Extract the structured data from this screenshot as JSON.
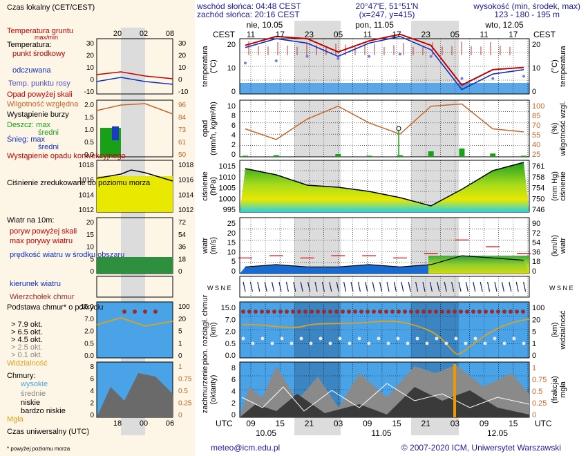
{
  "header": {
    "sunrise": "wschód słońca: 04:48 CEST",
    "sunset": "zachód słońca: 20:16 CEST",
    "coords": "20°47'E, 51°51'N",
    "grid": "(x=247, y=415)",
    "elevation_label": "wysokość (min, środek, max)",
    "elevation": "123 - 180 - 195 m"
  },
  "days": {
    "d1": "nie, 10.05",
    "d2": "pon, 11.05",
    "d3": "wto, 12.05"
  },
  "cest_label": "CEST",
  "utc_label": "UTC",
  "cest_hours": [
    "11",
    "17",
    "23",
    "05",
    "11",
    "17",
    "23",
    "05",
    "11",
    "17"
  ],
  "utc_hours": [
    "09",
    "15",
    "21",
    "03",
    "09",
    "15",
    "21",
    "03",
    "09",
    "15"
  ],
  "utc_dates": [
    "10.05",
    "11.05",
    "12.05"
  ],
  "legend": {
    "tz_title": "Czas lokalny\n(CET/CEST)",
    "tz_hours": [
      "20",
      "02",
      "08"
    ],
    "utc_title": "Czas uniwersalny (UTC)",
    "utc_hours": [
      "18",
      "00",
      "06"
    ],
    "footnote": "* powyżej poziomu morza",
    "soil_temp": "Temperatura gruntu",
    "maxmin": "max/min",
    "temperature": "Temperatura:",
    "dew_mid": "punkt środkowy",
    "apparent": "odczuwana",
    "dew_point": "Temp. punktu rosy",
    "precip_above": "Opad powyżej skali",
    "humidity": "Wilgotność względna",
    "storm": "Wystąpienie burzy",
    "rain_max": "Deszcz: max",
    "rain_mid": "średni",
    "snow_max": "Śnieg:  max",
    "snow_mid": "średni",
    "convective": "Wystąpienie opadu konwekcyjnego",
    "pressure": "Ciśnienie zredukowane do poziomu morza",
    "wind10": "Wiatr na 10m:",
    "gust_above": "poryw powyżej skali",
    "gust_max": "max porywy wiatru",
    "wind_mean": "prędkość wiatru w środku obszaru",
    "wind_dir": "kierunek wiatru",
    "cloud_top": "Wierzchołek chmur",
    "cloud_base": "Podstawa chmur* o pokryciu",
    "okt": [
      "> 7.9 okt.",
      "> 6.5 okt.",
      "> 4.5 okt.",
      "> 2.5 okt.",
      "> 0.1 okt."
    ],
    "visibility": "Widzialność",
    "clouds": "Chmury:",
    "high": "wysokie",
    "mid": "średnie",
    "low": "niskie",
    "very_low": "bardzo niskie",
    "fog": "Mgła"
  },
  "legend_ticks": {
    "temp_left": [
      "30",
      "20",
      "10",
      "0",
      "-10"
    ],
    "temp_right": [
      "30",
      "20",
      "10",
      "0",
      "-10"
    ],
    "precip_left": [
      "2.0",
      "1.5",
      "1.0",
      "0.5",
      "0.0"
    ],
    "precip_right": [
      "96",
      "84",
      "73",
      "61",
      "50"
    ],
    "press_left": [
      "1018",
      "1016",
      "1014",
      "1012"
    ],
    "press_right": [
      "1018",
      "1016",
      "1014",
      "1012"
    ],
    "wind_left": [
      "20",
      "15",
      "10",
      "5",
      "0"
    ],
    "wind_right": [
      "72",
      "54",
      "36",
      "18",
      "0"
    ],
    "cloud_left": [
      "15.0",
      "7.0",
      "2.0",
      "0.5",
      "0.0"
    ],
    "cloud_right": [
      "100",
      "20",
      "5",
      "1",
      "0"
    ],
    "fog_left": [
      "8",
      "6",
      "4",
      "2",
      "0"
    ],
    "fog_right": [
      "1",
      "0.75",
      "0.5",
      "0.25",
      "0"
    ]
  },
  "panels": {
    "temp": {
      "label_l": "temperatura\n(°C)",
      "label_r": "(°C)\ntemperatura",
      "ticks_l": [
        "20",
        "10",
        "0"
      ],
      "ticks_r": [
        "20",
        "10",
        "0"
      ]
    },
    "precip": {
      "label_l": "opad\n(mm/h, kg/m²/h)",
      "label_r": "(%)\nwilgotność wzgl.",
      "ticks_l": [
        "10",
        "8",
        "6",
        "4",
        "2",
        "0"
      ],
      "ticks_r": [
        "100",
        "85",
        "70",
        "55",
        "40",
        "25"
      ]
    },
    "press": {
      "label_l": "ciśnienie\n(hPa)",
      "label_r": "(mm Hg)\nciśnienie",
      "ticks_l": [
        "1015",
        "1010",
        "1005",
        "1000",
        "995"
      ],
      "ticks_r": [
        "761",
        "758",
        "754",
        "750",
        "746"
      ]
    },
    "wind": {
      "label_l": "wiatr\n(m/s)",
      "label_r": "(km/h)\nwiatr",
      "ticks_l": [
        "25",
        "20",
        "15",
        "10",
        "5",
        "0"
      ],
      "ticks_r": [
        "90",
        "72",
        "54",
        "36",
        "18",
        "0"
      ]
    },
    "wdir": {
      "label_l": "W S N E",
      "label_r": "W S N E"
    },
    "cloud": {
      "label_l": "pion. rozciągł. chmur\n(km)",
      "label_r": "(km)\nwidzialność",
      "ticks_l": [
        "15.0",
        "7.0",
        "2.0",
        "0.5",
        "0.0"
      ],
      "ticks_r": [
        "100",
        "20",
        "5",
        "1",
        "0"
      ]
    },
    "cover": {
      "label_l": "zachmurzenie\n(oktanty)",
      "label_r": "(frakcja)\nmgła",
      "ticks_l": [
        "8",
        "6",
        "4",
        "2",
        "0"
      ],
      "ticks_r": [
        "1",
        "0.75",
        "0.5",
        "0.25",
        "0"
      ]
    }
  },
  "footer": {
    "email": "meteo@icm.edu.pl",
    "copyright": "© 2007-2020 ICM, Uniwersytet Warszawski"
  },
  "chart_data": {
    "type": "line",
    "title": "",
    "x": [
      "10.05 09",
      "10.05 15",
      "10.05 21",
      "11.05 03",
      "11.05 09",
      "11.05 15",
      "11.05 21",
      "12.05 03",
      "12.05 09",
      "12.05 15"
    ],
    "series": [
      {
        "name": "temperatura",
        "values": [
          17,
          21,
          20,
          14,
          19,
          22,
          17,
          -1,
          6,
          7
        ],
        "unit": "°C"
      },
      {
        "name": "odczuwana",
        "values": [
          16,
          20,
          18,
          12,
          18,
          21,
          15,
          -3,
          4,
          6
        ],
        "unit": "°C"
      },
      {
        "name": "temp. punktu rosy",
        "values": [
          9,
          10,
          12,
          11,
          12,
          13,
          12,
          2,
          2,
          3
        ],
        "unit": "°C"
      },
      {
        "name": "wilgotność względna",
        "values": [
          62,
          48,
          75,
          92,
          70,
          55,
          92,
          95,
          62,
          58
        ],
        "unit": "%"
      },
      {
        "name": "ciśnienie",
        "values": [
          1013,
          1010,
          1005,
          1004,
          1002,
          999,
          995,
          1003,
          1012,
          1016
        ],
        "unit": "hPa"
      },
      {
        "name": "porywy wiatru",
        "values": [
          7,
          8,
          7,
          8,
          8,
          7,
          9,
          15,
          12,
          9
        ],
        "unit": "m/s"
      },
      {
        "name": "prędkość wiatru",
        "values": [
          3,
          4,
          3,
          3,
          4,
          3,
          4,
          8,
          7,
          6
        ],
        "unit": "m/s"
      },
      {
        "name": "opad",
        "values": [
          0.2,
          0.3,
          0,
          0.5,
          0.2,
          0.3,
          1.0,
          1.5,
          0.6,
          0.2
        ],
        "unit": "mm/h"
      },
      {
        "name": "zachmurzenie",
        "values": [
          3,
          6,
          5,
          4,
          6,
          4,
          7,
          7,
          5,
          5
        ],
        "unit": "okt"
      }
    ],
    "ylim": [
      -5,
      30
    ],
    "grid": true
  },
  "colors": {
    "bg_blue": "#4aa3e6",
    "grid_dark": "#cfcfcf",
    "red": "#c00000",
    "orange": "#d47a20",
    "navy": "#102070"
  }
}
